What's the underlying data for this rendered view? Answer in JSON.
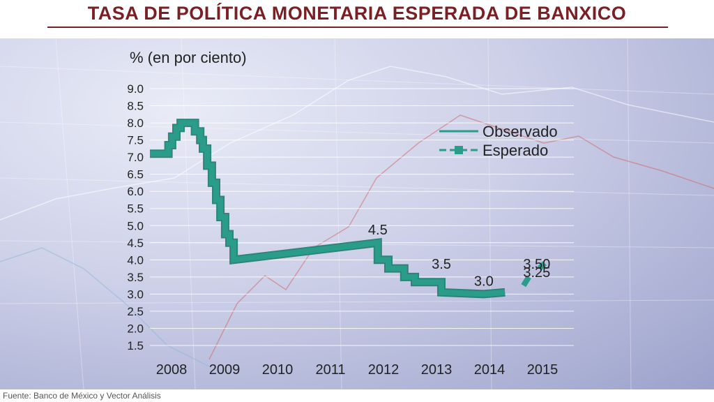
{
  "title": "TASA DE POLÍTICA MONETARIA ESPERADA DE BANXICO",
  "source": "Fuente: Banco de México y Vector Análisis",
  "colors": {
    "title": "#7a1f24",
    "series": "#2a9d8a",
    "series_dark": "#1e7a6b"
  },
  "chart_data": {
    "type": "line",
    "ylabel": "% (en por ciento)",
    "ylim": [
      1.5,
      9.0
    ],
    "yticks": [
      "9.0",
      "8.5",
      "8.0",
      "7.5",
      "7.0",
      "6.5",
      "6.0",
      "5.5",
      "5.0",
      "4.5",
      "4.0",
      "3.5",
      "3.0",
      "2.5",
      "2.0",
      "1.5"
    ],
    "xticks": [
      "2008",
      "2009",
      "2010",
      "2011",
      "2012",
      "2013",
      "2014",
      "2015"
    ],
    "grid": true,
    "legend_position": "top-right",
    "series": [
      {
        "name": "Observado",
        "points": [
          [
            2008.0,
            7.1
          ],
          [
            2008.35,
            7.1
          ],
          [
            2008.35,
            7.35
          ],
          [
            2008.42,
            7.35
          ],
          [
            2008.42,
            7.6
          ],
          [
            2008.5,
            7.6
          ],
          [
            2008.5,
            7.85
          ],
          [
            2008.58,
            7.85
          ],
          [
            2008.58,
            8.0
          ],
          [
            2008.85,
            8.0
          ],
          [
            2008.85,
            7.75
          ],
          [
            2008.95,
            7.75
          ],
          [
            2008.95,
            7.5
          ],
          [
            2009.0,
            7.5
          ],
          [
            2009.0,
            7.25
          ],
          [
            2009.08,
            7.25
          ],
          [
            2009.08,
            6.75
          ],
          [
            2009.17,
            6.75
          ],
          [
            2009.17,
            6.25
          ],
          [
            2009.25,
            6.25
          ],
          [
            2009.25,
            5.75
          ],
          [
            2009.33,
            5.75
          ],
          [
            2009.33,
            5.25
          ],
          [
            2009.42,
            5.25
          ],
          [
            2009.42,
            4.75
          ],
          [
            2009.5,
            4.75
          ],
          [
            2009.5,
            4.5
          ],
          [
            2009.58,
            4.5
          ],
          [
            2009.58,
            4.0
          ],
          [
            2012.3,
            4.5
          ],
          [
            2012.3,
            4.0
          ],
          [
            2012.5,
            4.0
          ],
          [
            2012.5,
            3.75
          ],
          [
            2012.8,
            3.75
          ],
          [
            2012.8,
            3.5
          ],
          [
            2013.0,
            3.5
          ],
          [
            2013.0,
            3.35
          ],
          [
            2013.5,
            3.35
          ],
          [
            2013.5,
            3.05
          ],
          [
            2014.3,
            3.0
          ],
          [
            2014.7,
            3.05
          ]
        ]
      },
      {
        "name": "Esperado",
        "points": [
          [
            2015.05,
            3.25
          ],
          [
            2015.15,
            3.5
          ]
        ],
        "points_b": [
          [
            2015.35,
            3.75
          ],
          [
            2015.45,
            3.9
          ]
        ]
      }
    ],
    "annotations": [
      {
        "text": "4.5",
        "x": 2012.3,
        "y": 4.5
      },
      {
        "text": "3.5",
        "x": 2013.5,
        "y": 3.5
      },
      {
        "text": "3.0",
        "x": 2014.3,
        "y": 3.0
      },
      {
        "text": "3.50",
        "x": 2015.3,
        "y": 3.5
      },
      {
        "text": "3.25",
        "x": 2015.3,
        "y": 3.25
      }
    ]
  }
}
